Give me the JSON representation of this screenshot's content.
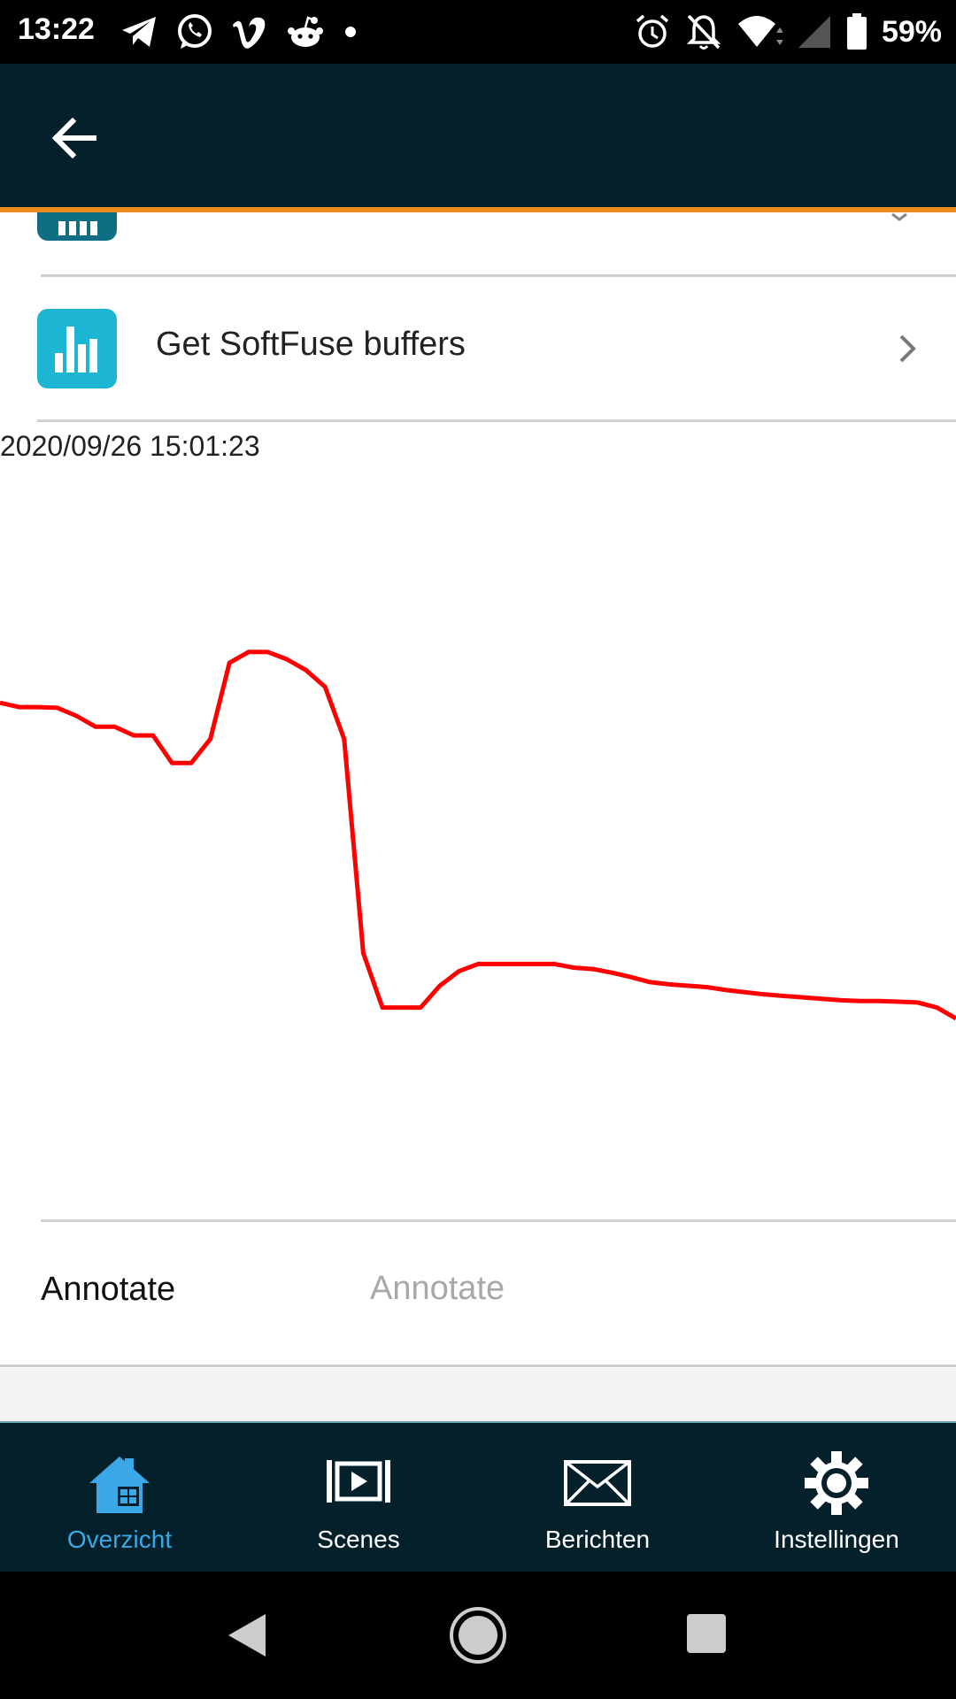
{
  "status_bar": {
    "time": "13:22",
    "battery_percent": "59%",
    "notification_icons": [
      "telegram-icon",
      "whatsapp-icon",
      "vimeo-icon",
      "reddit-icon",
      "dot-icon"
    ],
    "system_icons": [
      "alarm-icon",
      "notifications-off-icon",
      "wifi-icon",
      "cell-signal-icon",
      "battery-icon"
    ]
  },
  "app_bar": {
    "back_icon": "arrow-back-icon",
    "accent_color": "#f08a1d",
    "background": "#03202b"
  },
  "list": {
    "items": [
      {
        "label": "",
        "icon": "bar-chart-icon",
        "tile_color": "#0f6e83"
      },
      {
        "label": "Get SoftFuse buffers",
        "icon": "bar-chart-icon",
        "tile_color": "#1cb5d4"
      }
    ]
  },
  "chart_data": {
    "type": "line",
    "timestamp": "2020/09/26 15:01:23",
    "series": [
      {
        "color": "#ff0000",
        "x": [
          0,
          2,
          4,
          6,
          8,
          10,
          12,
          14,
          16,
          18,
          20,
          22,
          24,
          26,
          28,
          30,
          32,
          34,
          36,
          38,
          40,
          42,
          44,
          46,
          48,
          50,
          52,
          54,
          56,
          58,
          60,
          62,
          64,
          66,
          68,
          70,
          72,
          74,
          76,
          78,
          80,
          82,
          84,
          86,
          88,
          90,
          92,
          94,
          96,
          98,
          100
        ],
        "y": [
          0.69,
          0.684,
          0.684,
          0.683,
          0.672,
          0.657,
          0.657,
          0.645,
          0.645,
          0.607,
          0.607,
          0.64,
          0.745,
          0.76,
          0.76,
          0.75,
          0.735,
          0.712,
          0.64,
          0.345,
          0.27,
          0.27,
          0.27,
          0.3,
          0.32,
          0.33,
          0.33,
          0.33,
          0.33,
          0.33,
          0.325,
          0.323,
          0.318,
          0.312,
          0.305,
          0.302,
          0.3,
          0.298,
          0.294,
          0.291,
          0.288,
          0.286,
          0.284,
          0.282,
          0.28,
          0.279,
          0.279,
          0.278,
          0.277,
          0.27,
          0.255
        ]
      }
    ]
  },
  "annotate": {
    "label": "Annotate",
    "placeholder": "Annotate",
    "value": ""
  },
  "bottom_nav": {
    "active_color": "#3aa7e6",
    "items": [
      {
        "label": "Overzicht",
        "icon": "home-icon",
        "active": true
      },
      {
        "label": "Scenes",
        "icon": "scenes-icon",
        "active": false
      },
      {
        "label": "Berichten",
        "icon": "mail-icon",
        "active": false
      },
      {
        "label": "Instellingen",
        "icon": "gear-icon",
        "active": false
      }
    ]
  },
  "system_nav": [
    "nav-back-icon",
    "nav-home-icon",
    "nav-recents-icon"
  ]
}
